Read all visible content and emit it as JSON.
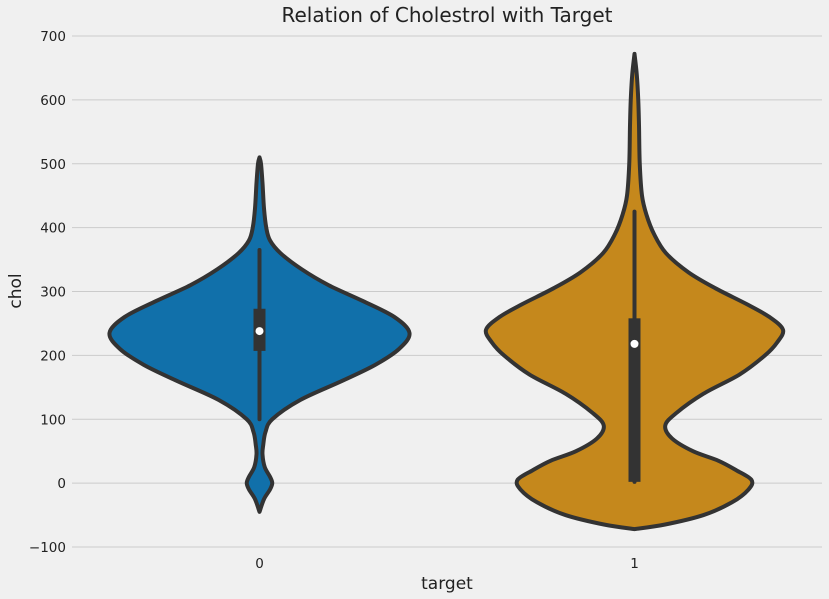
{
  "chart_data": {
    "type": "violin",
    "title": "Relation of Cholestrol with Target",
    "xlabel": "target",
    "ylabel": "chol",
    "categories": [
      "0",
      "1"
    ],
    "ylim": [
      -100,
      700
    ],
    "yticks": [
      -100,
      0,
      100,
      200,
      300,
      400,
      500,
      600,
      700
    ],
    "ytick_labels": [
      "−100",
      "0",
      "100",
      "200",
      "300",
      "400",
      "500",
      "600",
      "700"
    ],
    "grid": true,
    "series": [
      {
        "category": "0",
        "color": "#1170aa",
        "range": [
          -45,
          510
        ],
        "median": 238,
        "q1": 207,
        "q3": 273,
        "whisker_low": 100,
        "whisker_high": 365,
        "density": [
          [
            -45,
            0.0
          ],
          [
            -25,
            0.03
          ],
          [
            -10,
            0.07
          ],
          [
            0,
            0.085
          ],
          [
            10,
            0.07
          ],
          [
            25,
            0.035
          ],
          [
            45,
            0.02
          ],
          [
            60,
            0.025
          ],
          [
            80,
            0.04
          ],
          [
            100,
            0.085
          ],
          [
            130,
            0.27
          ],
          [
            160,
            0.55
          ],
          [
            185,
            0.77
          ],
          [
            210,
            0.93
          ],
          [
            235,
            1.0
          ],
          [
            260,
            0.9
          ],
          [
            285,
            0.69
          ],
          [
            310,
            0.46
          ],
          [
            335,
            0.28
          ],
          [
            360,
            0.14
          ],
          [
            380,
            0.07
          ],
          [
            400,
            0.045
          ],
          [
            430,
            0.03
          ],
          [
            470,
            0.02
          ],
          [
            500,
            0.01
          ],
          [
            510,
            0.0
          ]
        ]
      },
      {
        "category": "1",
        "color": "#c5881c",
        "range": [
          -72,
          672
        ],
        "median": 218,
        "q1": 2,
        "q3": 258,
        "whisker_low": 2,
        "whisker_high": 425,
        "density": [
          [
            -72,
            0.0
          ],
          [
            -65,
            0.2
          ],
          [
            -50,
            0.46
          ],
          [
            -30,
            0.65
          ],
          [
            -10,
            0.76
          ],
          [
            5,
            0.78
          ],
          [
            20,
            0.68
          ],
          [
            35,
            0.56
          ],
          [
            50,
            0.39
          ],
          [
            70,
            0.25
          ],
          [
            90,
            0.205
          ],
          [
            110,
            0.28
          ],
          [
            140,
            0.46
          ],
          [
            170,
            0.7
          ],
          [
            200,
            0.87
          ],
          [
            220,
            0.95
          ],
          [
            240,
            0.99
          ],
          [
            260,
            0.9
          ],
          [
            280,
            0.75
          ],
          [
            305,
            0.54
          ],
          [
            330,
            0.36
          ],
          [
            360,
            0.21
          ],
          [
            390,
            0.13
          ],
          [
            420,
            0.08
          ],
          [
            450,
            0.05
          ],
          [
            500,
            0.035
          ],
          [
            560,
            0.03
          ],
          [
            600,
            0.025
          ],
          [
            640,
            0.015
          ],
          [
            672,
            0.0
          ]
        ]
      }
    ]
  }
}
